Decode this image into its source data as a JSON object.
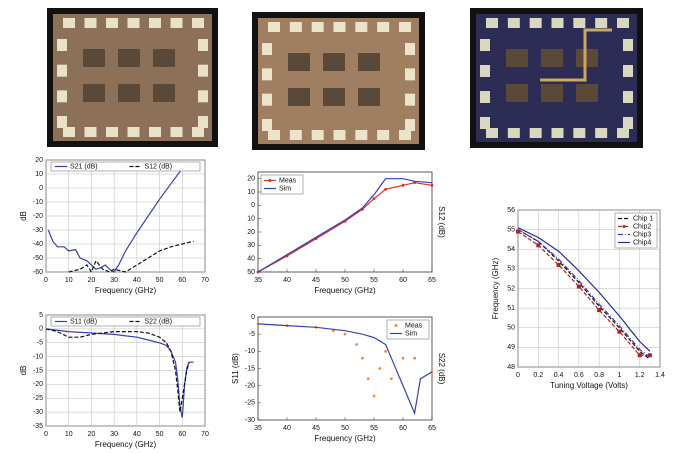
{
  "chart_data": [
    {
      "type": "line",
      "xlabel": "Frequency (GHz)",
      "ylabel": "dB",
      "xlim": [
        0,
        70
      ],
      "xticks": [
        0,
        10,
        20,
        30,
        40,
        50,
        60,
        70
      ],
      "ylim": [
        -60,
        20
      ],
      "yticks": [
        20,
        10,
        0,
        -10,
        -20,
        -30,
        -40,
        -50,
        -60
      ],
      "grid": true,
      "legend": "top",
      "series": [
        {
          "name": "S21 (dB)",
          "color": "#3a3fb0",
          "line_style": "solid",
          "x": [
            1,
            3,
            5,
            8,
            10,
            13,
            15,
            18,
            20,
            22,
            24,
            26,
            28,
            30,
            32,
            35,
            40,
            45,
            50,
            55,
            60,
            62,
            65
          ],
          "values": [
            -30,
            -38,
            -42,
            -42,
            -45,
            -44,
            -50,
            -52,
            -55,
            -58,
            -57,
            -55,
            -58,
            -60,
            -55,
            -45,
            -32,
            -20,
            -8,
            3,
            14,
            15,
            15
          ]
        },
        {
          "name": "S12 (dB)",
          "color": "#111111",
          "line_style": "dashed",
          "x": [
            10,
            15,
            18,
            20,
            22,
            25,
            28,
            30,
            35,
            40,
            45,
            50,
            55,
            60,
            65
          ],
          "values": [
            -60,
            -58,
            -55,
            -60,
            -52,
            -58,
            -60,
            -58,
            -60,
            -55,
            -50,
            -45,
            -42,
            -40,
            -38
          ]
        }
      ]
    },
    {
      "type": "line",
      "xlabel": "Frequency (GHz)",
      "y2label": "S12 (dB)",
      "xlim": [
        35,
        65
      ],
      "xticks": [
        35,
        40,
        45,
        50,
        55,
        60,
        65
      ],
      "ylim": [
        -50,
        25
      ],
      "yticks": [
        20,
        10,
        0,
        {
          "value": -10,
          "label": "10"
        },
        {
          "value": -20,
          "label": "20"
        },
        {
          "value": -30,
          "label": "30"
        },
        {
          "value": -40,
          "label": "40"
        },
        {
          "value": -50,
          "label": "50"
        }
      ],
      "grid": false,
      "legend": "upper left",
      "series": [
        {
          "name": "Meas",
          "color": "#d9302a",
          "line_style": "solid",
          "marker": "dot",
          "x": [
            35,
            40,
            45,
            50,
            53,
            55,
            57,
            60,
            62,
            65
          ],
          "values": [
            -50,
            -38,
            -25,
            -12,
            -3,
            5,
            12,
            15,
            17,
            15
          ]
        },
        {
          "name": "Sim",
          "color": "#3a3fb0",
          "line_style": "solid",
          "x": [
            35,
            40,
            45,
            50,
            53,
            55,
            57,
            60,
            62,
            65
          ],
          "values": [
            -50,
            -37,
            -24,
            -11,
            -2,
            8,
            20,
            20,
            18,
            17
          ]
        }
      ]
    },
    {
      "type": "line",
      "xlabel": "Frequency (GHz)",
      "ylabel": "dB",
      "xlim": [
        0,
        70
      ],
      "xticks": [
        0,
        10,
        20,
        30,
        40,
        50,
        60,
        70
      ],
      "ylim": [
        -35,
        5
      ],
      "yticks": [
        5,
        0,
        -5,
        -10,
        -15,
        -20,
        -25,
        -30,
        -35
      ],
      "grid": true,
      "legend": "top",
      "series": [
        {
          "name": "S11 (dB)",
          "color": "#3a3fb0",
          "line_style": "solid",
          "x": [
            0,
            10,
            20,
            30,
            40,
            45,
            50,
            53,
            55,
            57,
            58,
            59,
            60,
            61,
            62,
            63,
            65
          ],
          "values": [
            0,
            -1,
            -1.5,
            -2,
            -3,
            -4,
            -5,
            -6,
            -8,
            -12,
            -18,
            -28,
            -32,
            -20,
            -14,
            -12,
            -12
          ]
        },
        {
          "name": "S22 (dB)",
          "color": "#111111",
          "line_style": "dashed",
          "x": [
            0,
            5,
            10,
            15,
            20,
            30,
            40,
            45,
            50,
            53,
            55,
            57,
            58,
            59,
            60,
            62,
            63
          ],
          "values": [
            0,
            -1,
            -3,
            -3,
            -2,
            -1,
            -1,
            -1.5,
            -3,
            -5,
            -8,
            -15,
            -22,
            -30,
            -25,
            -15,
            -12
          ]
        }
      ]
    },
    {
      "type": "line",
      "xlabel": "Frequency (GHz)",
      "ylabel": "S11 (dB)",
      "y2label": "S22 (dB)",
      "xlim": [
        35,
        65
      ],
      "xticks": [
        35,
        40,
        45,
        50,
        55,
        60,
        65
      ],
      "ylim": [
        -30,
        0
      ],
      "yticks": [
        0,
        -5,
        -10,
        -15,
        -20,
        -25,
        -30
      ],
      "grid": false,
      "legend": "upper right",
      "series": [
        {
          "name": "Meas",
          "color": "#f08a3c",
          "line_style": "none",
          "marker": "dot",
          "x": [
            35,
            40,
            45,
            48,
            50,
            52,
            53,
            54,
            55,
            56,
            57,
            58,
            60,
            62,
            65
          ],
          "values": [
            -2,
            -2.5,
            -3,
            -4,
            -5,
            -8,
            -12,
            -18,
            -23,
            -15,
            -10,
            -18,
            -12,
            -12,
            -16
          ]
        },
        {
          "name": "Sim",
          "color": "#3a3fb0",
          "line_style": "solid",
          "x": [
            35,
            40,
            45,
            50,
            53,
            55,
            57,
            58,
            60,
            62,
            63,
            65
          ],
          "values": [
            -2,
            -2.5,
            -3,
            -4,
            -5,
            -6,
            -8,
            -12,
            -20,
            -28,
            -18,
            -16
          ]
        }
      ]
    },
    {
      "type": "line",
      "xlabel": "Tuning Voltage (Volts)",
      "ylabel": "Frequency (GHz)",
      "xlim": [
        0,
        1.4
      ],
      "xticks": [
        0,
        0.2,
        0.4,
        0.6,
        0.8,
        1,
        1.2,
        1.4
      ],
      "ylim": [
        48,
        56
      ],
      "yticks": [
        48,
        49,
        50,
        51,
        52,
        53,
        54,
        55,
        56
      ],
      "grid": true,
      "legend": "upper right",
      "series": [
        {
          "name": "Chip 1",
          "color": "#111111",
          "line_style": "dashed",
          "x": [
            0,
            0.2,
            0.4,
            0.6,
            0.8,
            1,
            1.2,
            1.3
          ],
          "values": [
            55,
            54.4,
            53.4,
            52.3,
            51.1,
            50,
            48.8,
            48.4
          ]
        },
        {
          "name": "Chip2",
          "color": "#b02020",
          "line_style": "dashed",
          "marker": "square",
          "x": [
            0,
            0.2,
            0.4,
            0.6,
            0.8,
            1,
            1.2,
            1.3
          ],
          "values": [
            54.9,
            54.2,
            53.2,
            52.1,
            50.9,
            49.8,
            48.6,
            48.6
          ]
        },
        {
          "name": "Chip3",
          "color": "#3a3fb0",
          "line_style": "dashdot",
          "x": [
            0,
            0.2,
            0.4,
            0.6,
            0.8,
            1,
            1.2,
            1.3
          ],
          "values": [
            55,
            54.4,
            53.5,
            52.4,
            51.2,
            50.1,
            48.9,
            48.5
          ]
        },
        {
          "name": "Chip4",
          "color": "#2a2a9a",
          "line_style": "solid",
          "x": [
            0,
            0.2,
            0.4,
            0.6,
            0.8,
            1,
            1.2,
            1.3
          ],
          "values": [
            55.1,
            54.6,
            53.9,
            52.9,
            51.8,
            50.6,
            49.3,
            48.8
          ]
        }
      ]
    }
  ]
}
